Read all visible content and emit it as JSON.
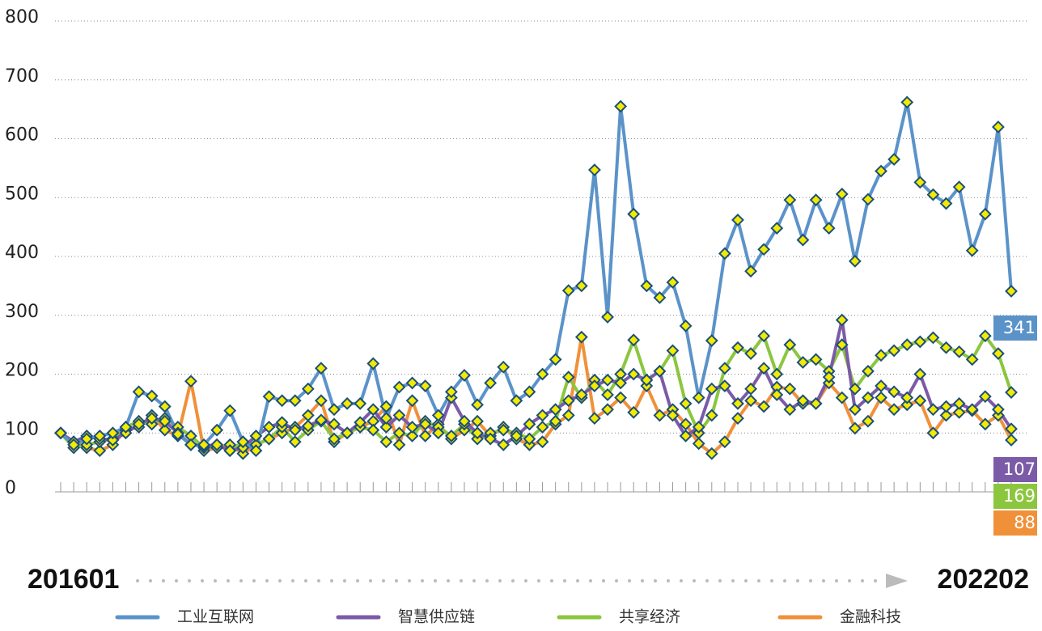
{
  "chart_data": {
    "type": "line",
    "categories": [
      "201601",
      null,
      null,
      null,
      null,
      null,
      null,
      null,
      null,
      null,
      null,
      null,
      null,
      null,
      null,
      null,
      null,
      null,
      null,
      null,
      null,
      null,
      null,
      null,
      null,
      null,
      null,
      null,
      null,
      null,
      null,
      null,
      null,
      null,
      null,
      null,
      null,
      null,
      null,
      null,
      null,
      null,
      null,
      null,
      null,
      null,
      null,
      null,
      null,
      null,
      null,
      null,
      null,
      null,
      null,
      null,
      null,
      null,
      null,
      null,
      null,
      null,
      null,
      null,
      null,
      null,
      null,
      null,
      null,
      null,
      null,
      null,
      null,
      "202202"
    ],
    "series": [
      {
        "name": "工业互联网",
        "color": "#5b93c9",
        "values": [
          100,
          80,
          90,
          95,
          100,
          110,
          170,
          163,
          145,
          98,
          80,
          80,
          105,
          138,
          85,
          70,
          162,
          155,
          155,
          175,
          210,
          140,
          150,
          150,
          218,
          125,
          178,
          185,
          180,
          130,
          170,
          198,
          148,
          185,
          212,
          155,
          170,
          200,
          225,
          342,
          350,
          547,
          297,
          655,
          472,
          350,
          330,
          356,
          282,
          160,
          257,
          405,
          462,
          375,
          412,
          448,
          496,
          428,
          496,
          448,
          506,
          392,
          497,
          545,
          565,
          662,
          526,
          505,
          490,
          518,
          410,
          472,
          620,
          341
        ]
      },
      {
        "name": "智慧供应链",
        "color": "#7b5ba7",
        "values": [
          100,
          85,
          95,
          90,
          88,
          100,
          115,
          125,
          120,
          100,
          80,
          78,
          80,
          70,
          75,
          95,
          110,
          118,
          105,
          112,
          122,
          115,
          100,
          118,
          140,
          110,
          130,
          110,
          115,
          100,
          160,
          120,
          100,
          90,
          80,
          95,
          115,
          130,
          140,
          155,
          165,
          180,
          190,
          185,
          200,
          190,
          205,
          130,
          95,
          110,
          175,
          180,
          150,
          175,
          210,
          165,
          140,
          155,
          150,
          195,
          292,
          140,
          160,
          180,
          170,
          160,
          200,
          140,
          145,
          150,
          140,
          162,
          140,
          107
        ]
      },
      {
        "name": "共享经济",
        "color": "#8cc63f",
        "values": [
          100,
          75,
          80,
          85,
          90,
          110,
          120,
          115,
          125,
          110,
          95,
          75,
          80,
          70,
          85,
          80,
          90,
          110,
          85,
          105,
          120,
          90,
          100,
          110,
          105,
          85,
          100,
          95,
          120,
          110,
          95,
          115,
          90,
          100,
          105,
          100,
          90,
          110,
          120,
          195,
          160,
          190,
          165,
          200,
          258,
          190,
          205,
          240,
          150,
          100,
          130,
          210,
          245,
          235,
          265,
          200,
          250,
          220,
          225,
          205,
          250,
          175,
          205,
          232,
          240,
          250,
          255,
          262,
          245,
          238,
          225,
          265,
          235,
          169
        ]
      },
      {
        "name": "金融科技",
        "color": "#f0913a",
        "values": [
          100,
          85,
          75,
          70,
          80,
          105,
          110,
          130,
          105,
          95,
          188,
          70,
          75,
          80,
          65,
          80,
          90,
          100,
          110,
          130,
          155,
          85,
          100,
          110,
          120,
          145,
          80,
          155,
          95,
          115,
          90,
          105,
          120,
          95,
          110,
          90,
          80,
          85,
          115,
          130,
          263,
          125,
          140,
          160,
          135,
          180,
          130,
          140,
          115,
          82,
          65,
          85,
          125,
          155,
          145,
          178,
          175,
          150,
          150,
          185,
          160,
          108,
          120,
          160,
          140,
          148,
          155,
          100,
          130,
          135,
          138,
          115,
          130,
          88
        ]
      }
    ],
    "ylim": [
      0,
      800
    ],
    "yticks": [
      0,
      100,
      200,
      300,
      400,
      500,
      600,
      700,
      800
    ],
    "grid": true,
    "legend": "bottom",
    "marker_color": "#f2ea00"
  }
}
